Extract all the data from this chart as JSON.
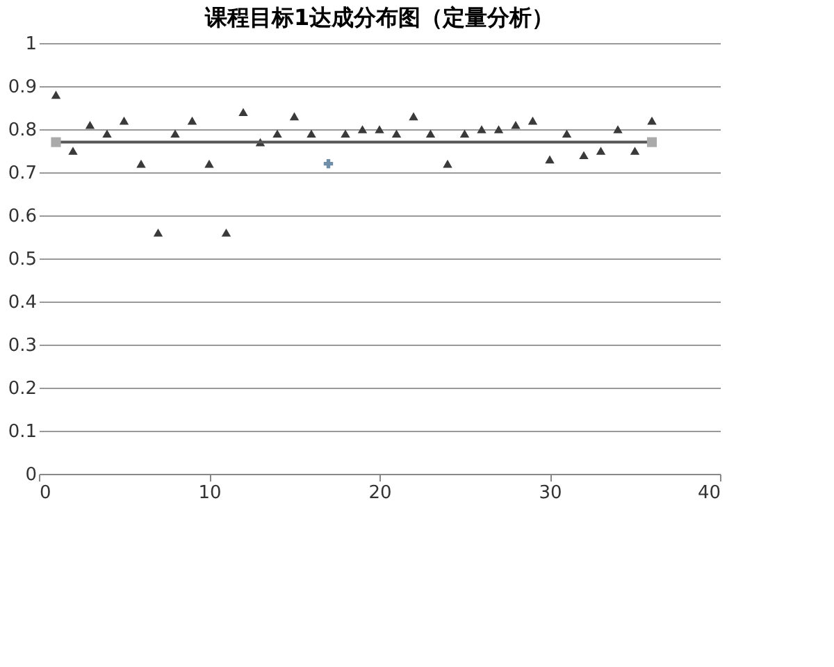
{
  "chart_data": {
    "type": "scatter",
    "title": "课程目标1达成分布图（定量分析）",
    "xlim": [
      0,
      40
    ],
    "xticks": [
      0,
      10,
      20,
      30,
      40
    ],
    "ylim": [
      0,
      1
    ],
    "yticks": [
      0,
      0.1,
      0.2,
      0.3,
      0.4,
      0.5,
      0.6,
      0.7,
      0.8,
      0.9,
      1
    ],
    "grid": "y",
    "legend": false,
    "series": [
      {
        "marker": "triangle",
        "color": "#3a3a3a",
        "x": [
          1,
          2,
          3,
          4,
          5,
          6,
          7,
          8,
          9,
          10,
          11,
          12,
          13,
          14,
          15,
          16,
          18,
          19,
          20,
          21,
          22,
          23,
          24,
          25,
          26,
          27,
          28,
          29,
          30,
          31,
          32,
          33,
          34,
          35,
          36
        ],
        "values": [
          0.88,
          0.75,
          0.81,
          0.79,
          0.82,
          0.72,
          0.56,
          0.79,
          0.82,
          0.72,
          0.56,
          0.84,
          0.77,
          0.79,
          0.83,
          0.79,
          0.79,
          0.8,
          0.8,
          0.79,
          0.83,
          0.79,
          0.72,
          0.79,
          0.8,
          0.8,
          0.81,
          0.82,
          0.73,
          0.79,
          0.74,
          0.75,
          0.8,
          0.75,
          0.82
        ]
      },
      {
        "marker": "cross",
        "color": "#6f8fa8",
        "x": [
          17
        ],
        "values": [
          0.72
        ]
      },
      {
        "type": "line",
        "marker": "square",
        "color": "#555555",
        "x": [
          1,
          36
        ],
        "values": [
          0.77,
          0.77
        ]
      }
    ]
  }
}
